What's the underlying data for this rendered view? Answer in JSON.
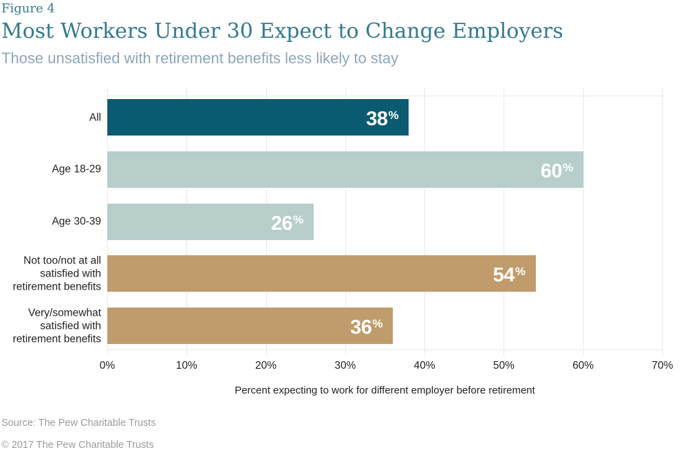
{
  "figure_label": "Figure 4",
  "title": "Most Workers Under 30 Expect to Change Employers",
  "subtitle": "Those unsatisfied with retirement benefits less likely to stay",
  "chart_data": {
    "type": "bar",
    "orientation": "horizontal",
    "title": "Most Workers Under 30 Expect to Change Employers",
    "categories": [
      "All",
      "Age 18-29",
      "Age 30-39",
      "Not too/not at all satisfied with retirement benefits",
      "Very/somewhat satisfied with retirement benefits"
    ],
    "values": [
      38,
      60,
      26,
      54,
      36
    ],
    "value_labels": [
      "38%",
      "60%",
      "26%",
      "54%",
      "36%"
    ],
    "bar_colors": [
      "#0a5b71",
      "#b7cecb",
      "#b7cecb",
      "#c09b6c",
      "#c09b6c"
    ],
    "xlabel": "Percent expecting to work for different employer before retirement",
    "ylabel": "",
    "xlim": [
      0,
      70
    ],
    "x_ticks": [
      {
        "value": 0,
        "label": "0%"
      },
      {
        "value": 10,
        "label": "10%"
      },
      {
        "value": 20,
        "label": "20%"
      },
      {
        "value": 30,
        "label": "30%"
      },
      {
        "value": 40,
        "label": "40%"
      },
      {
        "value": 50,
        "label": "50%"
      },
      {
        "value": 60,
        "label": "60%"
      },
      {
        "value": 70,
        "label": "70%"
      }
    ],
    "grid": "vertical",
    "legend": "none"
  },
  "colors": {
    "dark_teal": "#0a5b71",
    "light_blue_gray": "#b7cecb",
    "tan": "#c09b6c",
    "title_teal": "#35798e",
    "subtitle_blue": "#8ba7b8",
    "gridline": "#e9e9e7",
    "text": "#222222",
    "footer_gray": "#9b9b9b",
    "value_label_white": "#ffffff"
  },
  "footer": {
    "source": "Source: The Pew Charitable Trusts",
    "copyright": "© 2017 The Pew Charitable Trusts"
  }
}
